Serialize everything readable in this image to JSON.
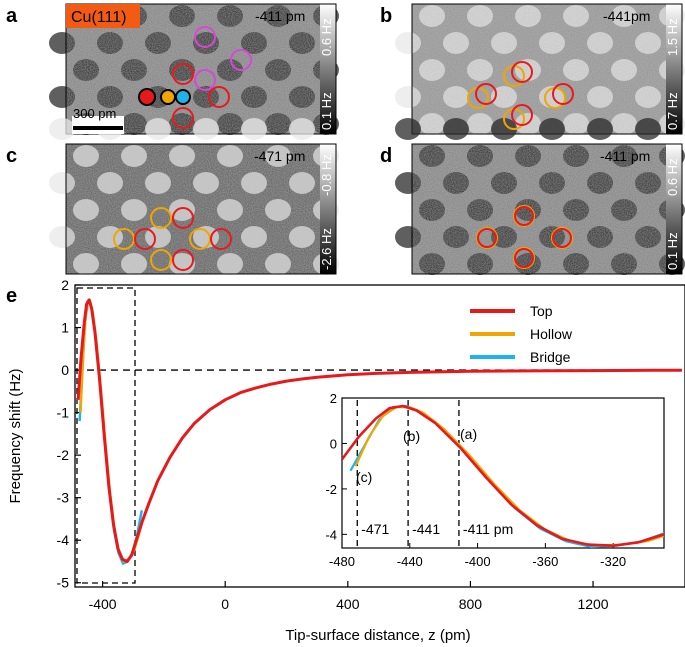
{
  "panel_labels": [
    "a",
    "b",
    "c",
    "d",
    "e"
  ],
  "images": [
    {
      "id": "a",
      "material": "Cu(111)",
      "height_label": "-411 pm",
      "scale_top": "0.6 Hz",
      "scale_bottom": "0.1 Hz",
      "scalebar": "300 pm",
      "contrast": "dark-holes"
    },
    {
      "id": "b",
      "height_label": "-441pm",
      "scale_top": "1.5 Hz",
      "scale_bottom": "0.7 Hz",
      "contrast": "bright-mixed"
    },
    {
      "id": "c",
      "height_label": "-471 pm",
      "scale_top": "-0.8 Hz",
      "scale_bottom": "-2.6 Hz",
      "contrast": "bright-holes"
    },
    {
      "id": "d",
      "height_label": "-411 pm",
      "scale_top": "0.6 Hz",
      "scale_bottom": "0.1 Hz",
      "contrast": "dark-holes"
    }
  ],
  "marker_colors": {
    "top": "#e8191c",
    "hollow": "#f0a500",
    "bridge": "#1eb4ea",
    "magenta": "#d946d9"
  },
  "chart_data": [
    {
      "type": "line",
      "id": "e",
      "xlabel": "Tip-surface distance, z (pm)",
      "ylabel": "Frequency shift (Hz)",
      "xlim": [
        -490,
        1500
      ],
      "ylim": [
        -5.1,
        2.0
      ],
      "xticks": [
        -400,
        0,
        400,
        800,
        1200
      ],
      "yticks": [
        2,
        1,
        0,
        -1,
        -2,
        -3,
        -4,
        -5
      ],
      "legend_position": "top-right",
      "series": [
        {
          "name": "Top",
          "color": "#e8191c",
          "x": [
            -480,
            -470,
            -460,
            -452,
            -444,
            -436,
            -425,
            -410,
            -395,
            -380,
            -365,
            -350,
            -335,
            -320,
            -305,
            -290,
            -270,
            -250,
            -220,
            -180,
            -140,
            -100,
            -50,
            0,
            50,
            100,
            150,
            200,
            250,
            300,
            400,
            500,
            600,
            800,
            1000,
            1200,
            1400,
            1490
          ],
          "y": [
            -0.7,
            0.3,
            1.1,
            1.55,
            1.65,
            1.45,
            0.9,
            -0.2,
            -1.5,
            -2.7,
            -3.6,
            -4.2,
            -4.45,
            -4.5,
            -4.35,
            -4.0,
            -3.55,
            -3.15,
            -2.6,
            -2.05,
            -1.6,
            -1.25,
            -0.93,
            -0.7,
            -0.53,
            -0.42,
            -0.33,
            -0.26,
            -0.21,
            -0.17,
            -0.11,
            -0.075,
            -0.055,
            -0.03,
            -0.02,
            -0.012,
            -0.006,
            -0.004
          ]
        },
        {
          "name": "Hollow",
          "color": "#f0a500",
          "x": [
            -472,
            -464,
            -456,
            -448,
            -440,
            -432,
            -420,
            -405,
            -390,
            -375,
            -360,
            -345,
            -330,
            -315,
            -300,
            -285,
            -270
          ],
          "y": [
            -1.0,
            0.3,
            1.2,
            1.6,
            1.6,
            1.35,
            0.65,
            -0.5,
            -1.8,
            -2.95,
            -3.8,
            -4.3,
            -4.5,
            -4.45,
            -4.3,
            -3.95,
            -3.55
          ]
        },
        {
          "name": "Bridge",
          "color": "#1eb4ea",
          "x": [
            -475,
            -466,
            -458,
            -450,
            -442,
            -434,
            -422,
            -408,
            -393,
            -378,
            -363,
            -348,
            -333,
            -318,
            -303,
            -288,
            -272
          ],
          "y": [
            -1.2,
            0.0,
            1.05,
            1.6,
            1.65,
            1.4,
            0.75,
            -0.35,
            -1.65,
            -2.85,
            -3.75,
            -4.3,
            -4.55,
            -4.5,
            -4.3,
            -3.9,
            -3.3
          ]
        }
      ],
      "annotations": [
        "(a)",
        "(b)",
        "(c)"
      ]
    },
    {
      "type": "line",
      "id": "e-inset",
      "xlim": [
        -480,
        -290
      ],
      "ylim": [
        -4.6,
        2.0
      ],
      "xticks": [
        -480,
        -440,
        -400,
        -360,
        -320
      ],
      "yticks": [
        2,
        0,
        -2,
        -4
      ],
      "marker_lines": [
        {
          "x": -471,
          "label": "-471"
        },
        {
          "x": -441,
          "label": "-441"
        },
        {
          "x": -411,
          "label": "-411 pm"
        }
      ],
      "point_labels": {
        "a": "(a)",
        "b": "(b)",
        "c": "(c)"
      }
    }
  ]
}
